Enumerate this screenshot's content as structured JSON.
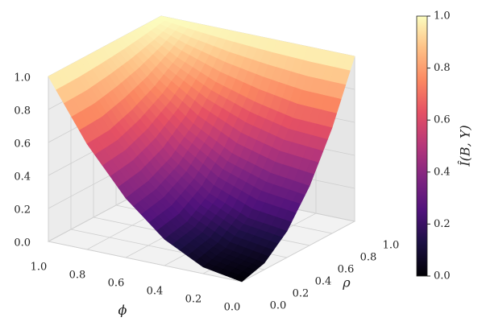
{
  "chart_data": {
    "type": "surface",
    "x_label": "ϕ",
    "y_label": "ρ",
    "colorbar_label": "Î(B, Y)",
    "colormap": "magma",
    "x": [
      0,
      0.2,
      0.4,
      0.6,
      0.8,
      1
    ],
    "y": [
      0,
      0.2,
      0.4,
      0.6,
      0.8,
      1
    ],
    "z": [
      [
        0,
        0.04,
        0.16,
        0.36,
        0.64,
        1
      ],
      [
        0.04,
        0.08,
        0.19,
        0.39,
        0.65,
        1
      ],
      [
        0.16,
        0.19,
        0.29,
        0.46,
        0.7,
        1
      ],
      [
        0.36,
        0.39,
        0.46,
        0.59,
        0.77,
        1
      ],
      [
        0.64,
        0.65,
        0.7,
        0.77,
        0.87,
        1
      ],
      [
        1,
        1,
        1,
        1,
        1,
        1
      ]
    ],
    "xlim": [
      0,
      1
    ],
    "ylim": [
      0,
      1
    ],
    "zlim": [
      0,
      1
    ],
    "clim": [
      0,
      1
    ],
    "xticks": [
      {
        "value": 0,
        "label": "0.0"
      },
      0.2,
      0.4,
      0.6,
      0.8,
      {
        "value": 1,
        "label": "1.0"
      }
    ],
    "yticks": [
      {
        "value": 0,
        "label": "0.0"
      },
      0.2,
      0.4,
      0.6,
      0.8,
      {
        "value": 1,
        "label": "1.0"
      }
    ],
    "zticks": [
      {
        "value": 0,
        "label": "0.0"
      },
      0.2,
      0.4,
      0.6,
      0.8,
      {
        "value": 1,
        "label": "1.0"
      }
    ],
    "colorbar_ticks": [
      {
        "value": 0,
        "label": "0.0"
      },
      0.2,
      0.4,
      0.6,
      0.8,
      {
        "value": 1,
        "label": "1.0"
      }
    ],
    "grid": true
  }
}
